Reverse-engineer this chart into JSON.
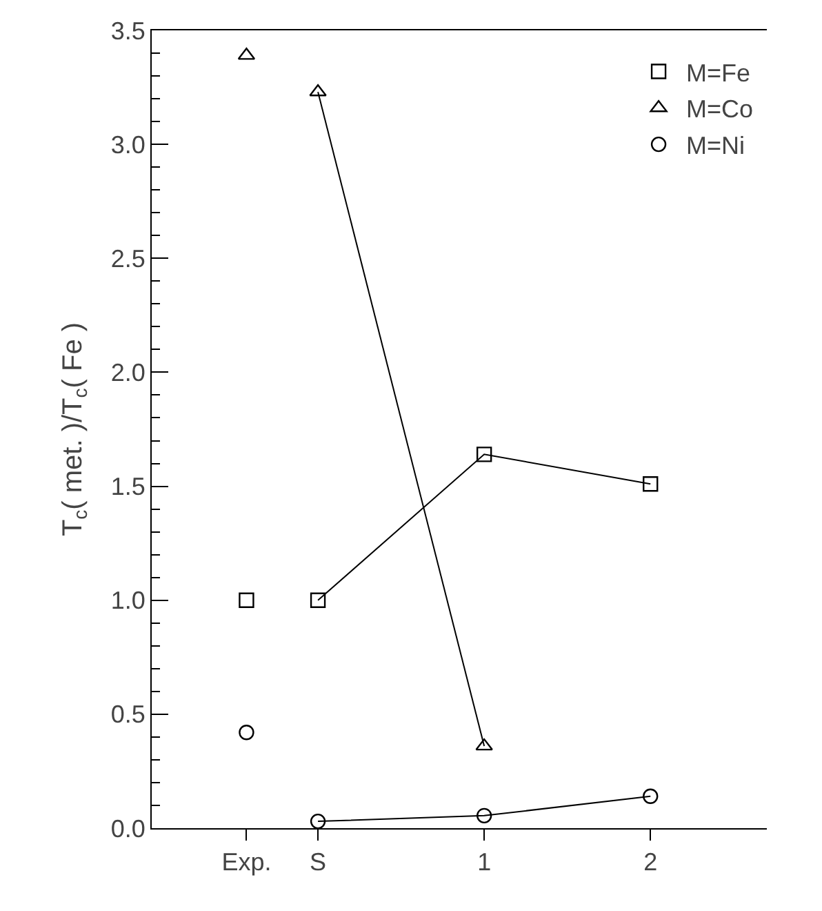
{
  "chart_data": {
    "type": "line",
    "ylabel": "T$_{c}$( met. )/T$_{c}$( Fe )",
    "xlim": [
      -1.0,
      2.7
    ],
    "xticks": [
      {
        "value": -0.43,
        "label": "Exp."
      },
      {
        "value": 0,
        "label": "S"
      },
      1,
      2
    ],
    "ylim": [
      0,
      3.5
    ],
    "yticks": [
      {
        "value": 0,
        "label": "0.0"
      },
      {
        "value": 0.5,
        "label": "0.5"
      },
      {
        "value": 1,
        "label": "1.0"
      },
      {
        "value": 1.5,
        "label": "1.5"
      },
      {
        "value": 2,
        "label": "2.0"
      },
      {
        "value": 2.5,
        "label": "2.5"
      },
      {
        "value": 3,
        "label": "3.0"
      },
      {
        "value": 3.5,
        "label": "3.5"
      }
    ],
    "legend": "top right",
    "series": [
      {
        "name": "M=Fe",
        "type": "scatter",
        "marker": "square",
        "color": "#000000",
        "x": [
          -0.43
        ],
        "values": [
          1.0
        ]
      },
      {
        "name": "M=Co",
        "type": "scatter",
        "marker": "triangle",
        "color": "#000000",
        "x": [
          -0.43
        ],
        "values": [
          3.39
        ]
      },
      {
        "name": "M=Ni",
        "type": "scatter",
        "marker": "circle",
        "color": "#000000",
        "x": [
          -0.43
        ],
        "values": [
          0.42
        ]
      },
      {
        "marker": "square",
        "color": "#000000",
        "x": [
          0,
          1,
          2
        ],
        "values": [
          1.0,
          1.64,
          1.51
        ]
      },
      {
        "marker": "triangle",
        "color": "#000000",
        "x": [
          0,
          1
        ],
        "values": [
          3.23,
          0.36
        ]
      },
      {
        "marker": "circle",
        "color": "#000000",
        "x": [
          0,
          1,
          2
        ],
        "values": [
          0.03,
          0.055,
          0.14
        ]
      }
    ]
  }
}
